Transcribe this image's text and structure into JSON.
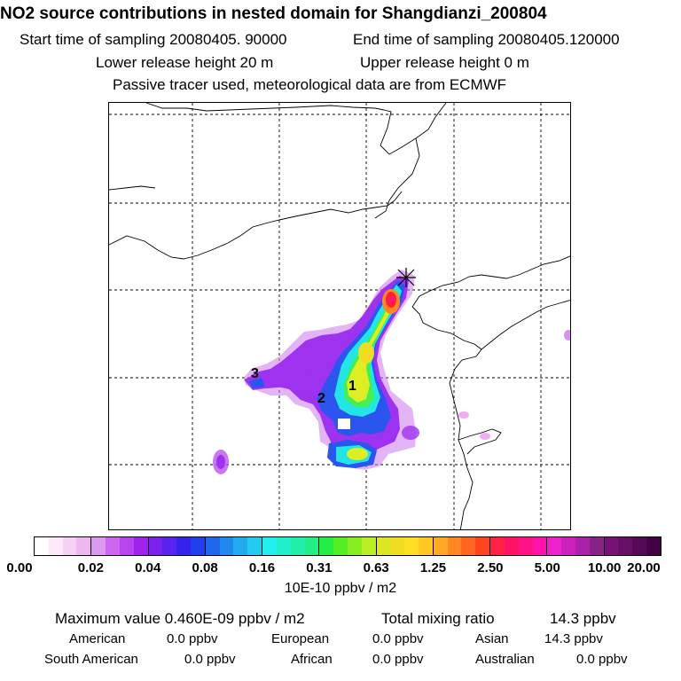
{
  "title": "NO2 source contributions in nested domain for Shangdianzi_200804",
  "header": {
    "start_label": "Start time of sampling 20080405. 90000",
    "end_label": "End time of sampling 20080405.120000",
    "lower_label": "Lower release height   20 m",
    "upper_label": "Upper release height    0 m",
    "note": "Passive tracer used, meteorological data are from ECMWF"
  },
  "map": {
    "source_labels": [
      "1",
      "2",
      "3"
    ],
    "receptor_marker": "receptor-star"
  },
  "colorbar": {
    "ticks": [
      "0.00",
      "0.02",
      "0.04",
      "0.08",
      "0.16",
      "0.31",
      "0.63",
      "1.25",
      "2.50",
      "5.00",
      "10.00",
      "20.00"
    ],
    "units": "10E-10 ppbv / m2",
    "segment_colors": [
      [
        "#ffffff",
        "#fde9fb",
        "#f8d2f6",
        "#f0b8f1"
      ],
      [
        "#dd99ee",
        "#cc66ee",
        "#b744ee",
        "#9f22ee"
      ],
      [
        "#7b22ee",
        "#5a22ee",
        "#3a22ee",
        "#2040ee"
      ],
      [
        "#2266ee",
        "#2288ee",
        "#22aaee",
        "#22ccee"
      ],
      [
        "#22eeee",
        "#22eecc",
        "#22eeaa",
        "#22ee88"
      ],
      [
        "#22ee44",
        "#55ee22",
        "#88ee22",
        "#bbee22"
      ],
      [
        "#dde622",
        "#eedd22",
        "#ffdd22",
        "#ffc822"
      ],
      [
        "#ffaa22",
        "#ff8822",
        "#ff6622",
        "#ff4422"
      ],
      [
        "#ff2244",
        "#ff1166",
        "#ff1188",
        "#ff11aa"
      ],
      [
        "#ee22cc",
        "#cc22bb",
        "#aa22aa",
        "#882288"
      ],
      [
        "#771177",
        "#660f66",
        "#550a55",
        "#440044"
      ]
    ]
  },
  "stats": {
    "max_label": "Maximum value  0.460E-09 ppbv / m2",
    "total_label": "Total mixing ratio",
    "total_value": "14.3 ppbv",
    "american_label": "American",
    "american_value": "0.0 ppbv",
    "european_label": "European",
    "european_value": "0.0 ppbv",
    "asian_label": "Asian",
    "asian_value": "14.3 ppbv",
    "south_american_label": "South American",
    "south_american_value": "0.0 ppbv",
    "african_label": "African",
    "african_value": "0.0 ppbv",
    "australian_label": "Australian",
    "australian_value": "0.0 ppbv"
  }
}
